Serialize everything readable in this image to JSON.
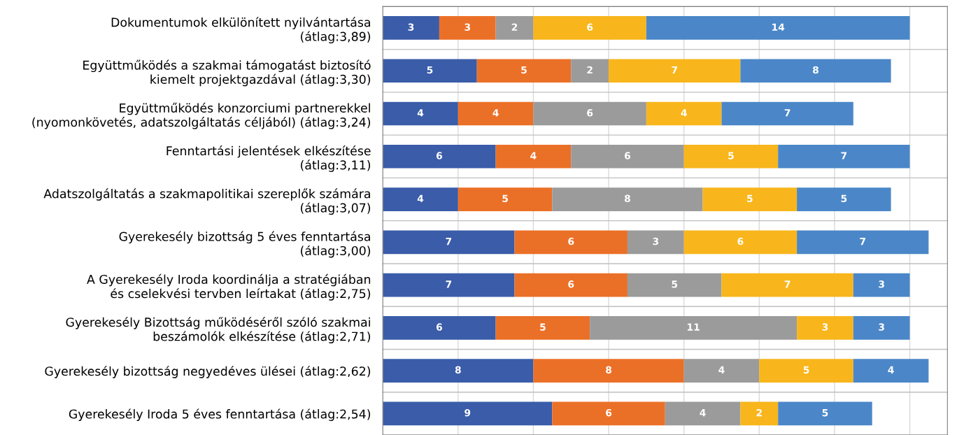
{
  "chart_data": {
    "type": "bar",
    "orientation": "horizontal",
    "stacked": true,
    "data_labels": true,
    "grid": "x",
    "tick_labels": "y",
    "legend": false,
    "categories": [
      "Dokumentumok elkülönített nyilvántartása\n(átlag:3,89)",
      "Együttműködés a szakmai támogatást biztosító\nkiemelt projektgazdával (átlag:3,30)",
      "Együttműködés konzorciumi partnerekkel\n(nyomonkövetés, adatszolgáltatás céljából) (átlag:3,24)",
      "Fenntartási jelentések elkészítése\n(átlag:3,11)",
      "Adatszolgáltatás a szakmapolitikai szereplők számára\n(átlag:3,07)",
      "Gyerekesély bizottság 5 éves fenntartása\n(átlag:3,00)",
      "A Gyerekesély Iroda koordinálja a stratégiában\nés cselekvési tervben leírtakat (átlag:2,75)",
      "Gyerekesély Bizottság működéséről szóló szakmai\nbeszámolók elkészítése (átlag:2,71)",
      "Gyerekesély bizottság negyedéves ülései (átlag:2,62)",
      "Gyerekesély Iroda 5 éves fenntartása (átlag:2,54)"
    ],
    "xlim": [
      0,
      30
    ],
    "xticks": [
      {
        "value": 0,
        "label": null
      },
      {
        "value": 4,
        "label": null
      },
      {
        "value": 8,
        "label": null
      },
      {
        "value": 12,
        "label": null
      },
      {
        "value": 16,
        "label": null
      },
      {
        "value": 20,
        "label": null
      },
      {
        "value": 24,
        "label": null
      },
      {
        "value": 28,
        "label": null
      }
    ],
    "series": [
      {
        "color": "#3a5ca9",
        "values": [
          3,
          5,
          4,
          6,
          4,
          7,
          7,
          6,
          8,
          9
        ]
      },
      {
        "color": "#eb7027",
        "values": [
          3,
          5,
          4,
          4,
          5,
          6,
          6,
          5,
          8,
          6
        ]
      },
      {
        "color": "#9b9b9b",
        "values": [
          2,
          2,
          6,
          6,
          8,
          3,
          5,
          11,
          4,
          4
        ]
      },
      {
        "color": "#f8b61c",
        "values": [
          6,
          7,
          4,
          5,
          5,
          6,
          7,
          3,
          5,
          2
        ]
      },
      {
        "color": "#4b87c8",
        "values": [
          14,
          8,
          7,
          7,
          5,
          7,
          3,
          3,
          4,
          5
        ]
      }
    ]
  }
}
